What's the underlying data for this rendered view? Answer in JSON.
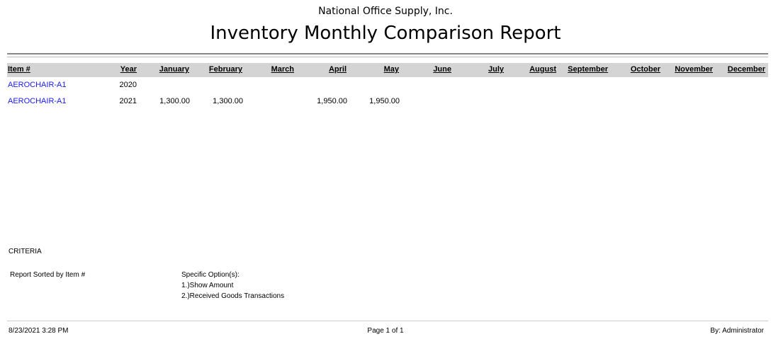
{
  "header": {
    "company": "National Office Supply, Inc.",
    "title": "Inventory Monthly Comparison Report"
  },
  "table": {
    "columns": [
      "Item #",
      "Year",
      "January",
      "February",
      "March",
      "April",
      "May",
      "June",
      "July",
      "August",
      "September",
      "October",
      "November",
      "December"
    ],
    "rows": [
      {
        "item": "AEROCHAIR-A1",
        "year": "2020",
        "values": [
          "",
          "",
          "",
          "",
          "",
          "",
          "",
          "",
          "",
          "",
          "",
          ""
        ]
      },
      {
        "item": "AEROCHAIR-A1",
        "year": "2021",
        "values": [
          "1,300.00",
          "1,300.00",
          "",
          "1,950.00",
          "1,950.00",
          "",
          "",
          "",
          "",
          "",
          "",
          ""
        ]
      }
    ]
  },
  "criteria": {
    "label": "CRITERIA",
    "sorted": "Report Sorted by Item #",
    "options_label": "Specific Option(s):",
    "options": [
      "1.)Show Amount",
      "2.)Received Goods Transactions"
    ]
  },
  "footer": {
    "datetime": "8/23/2021 3:28 PM",
    "page": "Page 1 of 1",
    "by": "By: Administrator"
  }
}
